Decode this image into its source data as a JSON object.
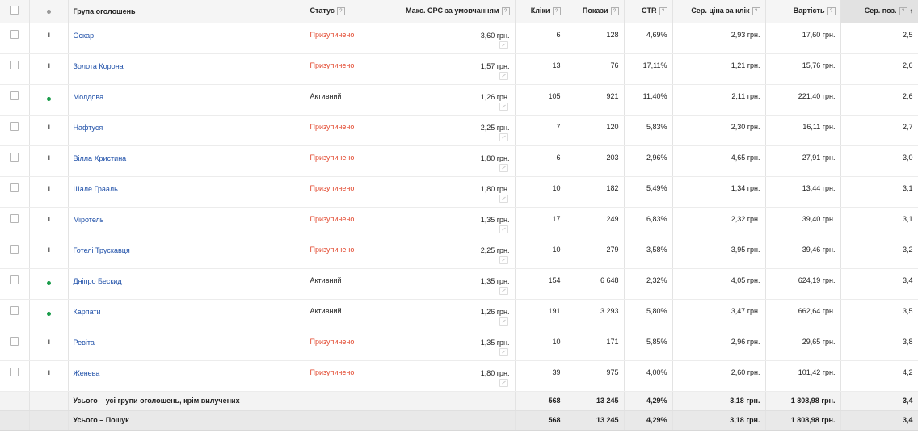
{
  "columns": {
    "ad_group": "Група оголошень",
    "status": "Статус",
    "max_cpc": "Макс. CPC за умовчанням",
    "clicks": "Кліки",
    "impressions": "Покази",
    "ctr": "CTR",
    "avg_cpc": "Сер. ціна за клік",
    "cost": "Вартість",
    "avg_pos": "Сер. поз."
  },
  "help_icon": "?",
  "sort_arrow": "↑",
  "rows": [
    {
      "name": "Оскар",
      "status": "Призупинено",
      "state": "paused",
      "bid": "3,60 грн.",
      "clicks": "6",
      "impr": "128",
      "ctr": "4,69%",
      "avg_cpc": "2,93 грн.",
      "cost": "17,60 грн.",
      "pos": "2,5"
    },
    {
      "name": "Золота Корона",
      "status": "Призупинено",
      "state": "paused",
      "bid": "1,57 грн.",
      "clicks": "13",
      "impr": "76",
      "ctr": "17,11%",
      "avg_cpc": "1,21 грн.",
      "cost": "15,76 грн.",
      "pos": "2,6"
    },
    {
      "name": "Молдова",
      "status": "Активний",
      "state": "active",
      "bid": "1,26 грн.",
      "clicks": "105",
      "impr": "921",
      "ctr": "11,40%",
      "avg_cpc": "2,11 грн.",
      "cost": "221,40 грн.",
      "pos": "2,6"
    },
    {
      "name": "Нафтуся",
      "status": "Призупинено",
      "state": "paused",
      "bid": "2,25 грн.",
      "clicks": "7",
      "impr": "120",
      "ctr": "5,83%",
      "avg_cpc": "2,30 грн.",
      "cost": "16,11 грн.",
      "pos": "2,7"
    },
    {
      "name": "Вілла Христина",
      "status": "Призупинено",
      "state": "paused",
      "bid": "1,80 грн.",
      "clicks": "6",
      "impr": "203",
      "ctr": "2,96%",
      "avg_cpc": "4,65 грн.",
      "cost": "27,91 грн.",
      "pos": "3,0"
    },
    {
      "name": "Шале Грааль",
      "status": "Призупинено",
      "state": "paused",
      "bid": "1,80 грн.",
      "clicks": "10",
      "impr": "182",
      "ctr": "5,49%",
      "avg_cpc": "1,34 грн.",
      "cost": "13,44 грн.",
      "pos": "3,1"
    },
    {
      "name": "Міротель",
      "status": "Призупинено",
      "state": "paused",
      "bid": "1,35 грн.",
      "clicks": "17",
      "impr": "249",
      "ctr": "6,83%",
      "avg_cpc": "2,32 грн.",
      "cost": "39,40 грн.",
      "pos": "3,1"
    },
    {
      "name": "Готелі Трускавця",
      "status": "Призупинено",
      "state": "paused",
      "bid": "2,25 грн.",
      "clicks": "10",
      "impr": "279",
      "ctr": "3,58%",
      "avg_cpc": "3,95 грн.",
      "cost": "39,46 грн.",
      "pos": "3,2"
    },
    {
      "name": "Дніпро Бескид",
      "status": "Активний",
      "state": "active",
      "bid": "1,35 грн.",
      "clicks": "154",
      "impr": "6 648",
      "ctr": "2,32%",
      "avg_cpc": "4,05 грн.",
      "cost": "624,19 грн.",
      "pos": "3,4"
    },
    {
      "name": "Карпати",
      "status": "Активний",
      "state": "active",
      "bid": "1,26 грн.",
      "clicks": "191",
      "impr": "3 293",
      "ctr": "5,80%",
      "avg_cpc": "3,47 грн.",
      "cost": "662,64 грн.",
      "pos": "3,5"
    },
    {
      "name": "Ревіта",
      "status": "Призупинено",
      "state": "paused",
      "bid": "1,35 грн.",
      "clicks": "10",
      "impr": "171",
      "ctr": "5,85%",
      "avg_cpc": "2,96 грн.",
      "cost": "29,65 грн.",
      "pos": "3,8"
    },
    {
      "name": "Женева",
      "status": "Призупинено",
      "state": "paused",
      "bid": "1,80 грн.",
      "clicks": "39",
      "impr": "975",
      "ctr": "4,00%",
      "avg_cpc": "2,60 грн.",
      "cost": "101,42 грн.",
      "pos": "4,2"
    }
  ],
  "totals": [
    {
      "label": "Усього – усі групи оголошень, крім вилучених",
      "clicks": "568",
      "impr": "13 245",
      "ctr": "4,29%",
      "avg_cpc": "3,18 грн.",
      "cost": "1 808,98 грн.",
      "pos": "3,4"
    },
    {
      "label": "Усього – Пошук",
      "clicks": "568",
      "impr": "13 245",
      "ctr": "4,29%",
      "avg_cpc": "3,18 грн.",
      "cost": "1 808,98 грн.",
      "pos": "3,4"
    }
  ],
  "colors": {
    "paused": "#e2472d",
    "active_dot": "#1a9c4a",
    "link": "#1e4fa8"
  }
}
